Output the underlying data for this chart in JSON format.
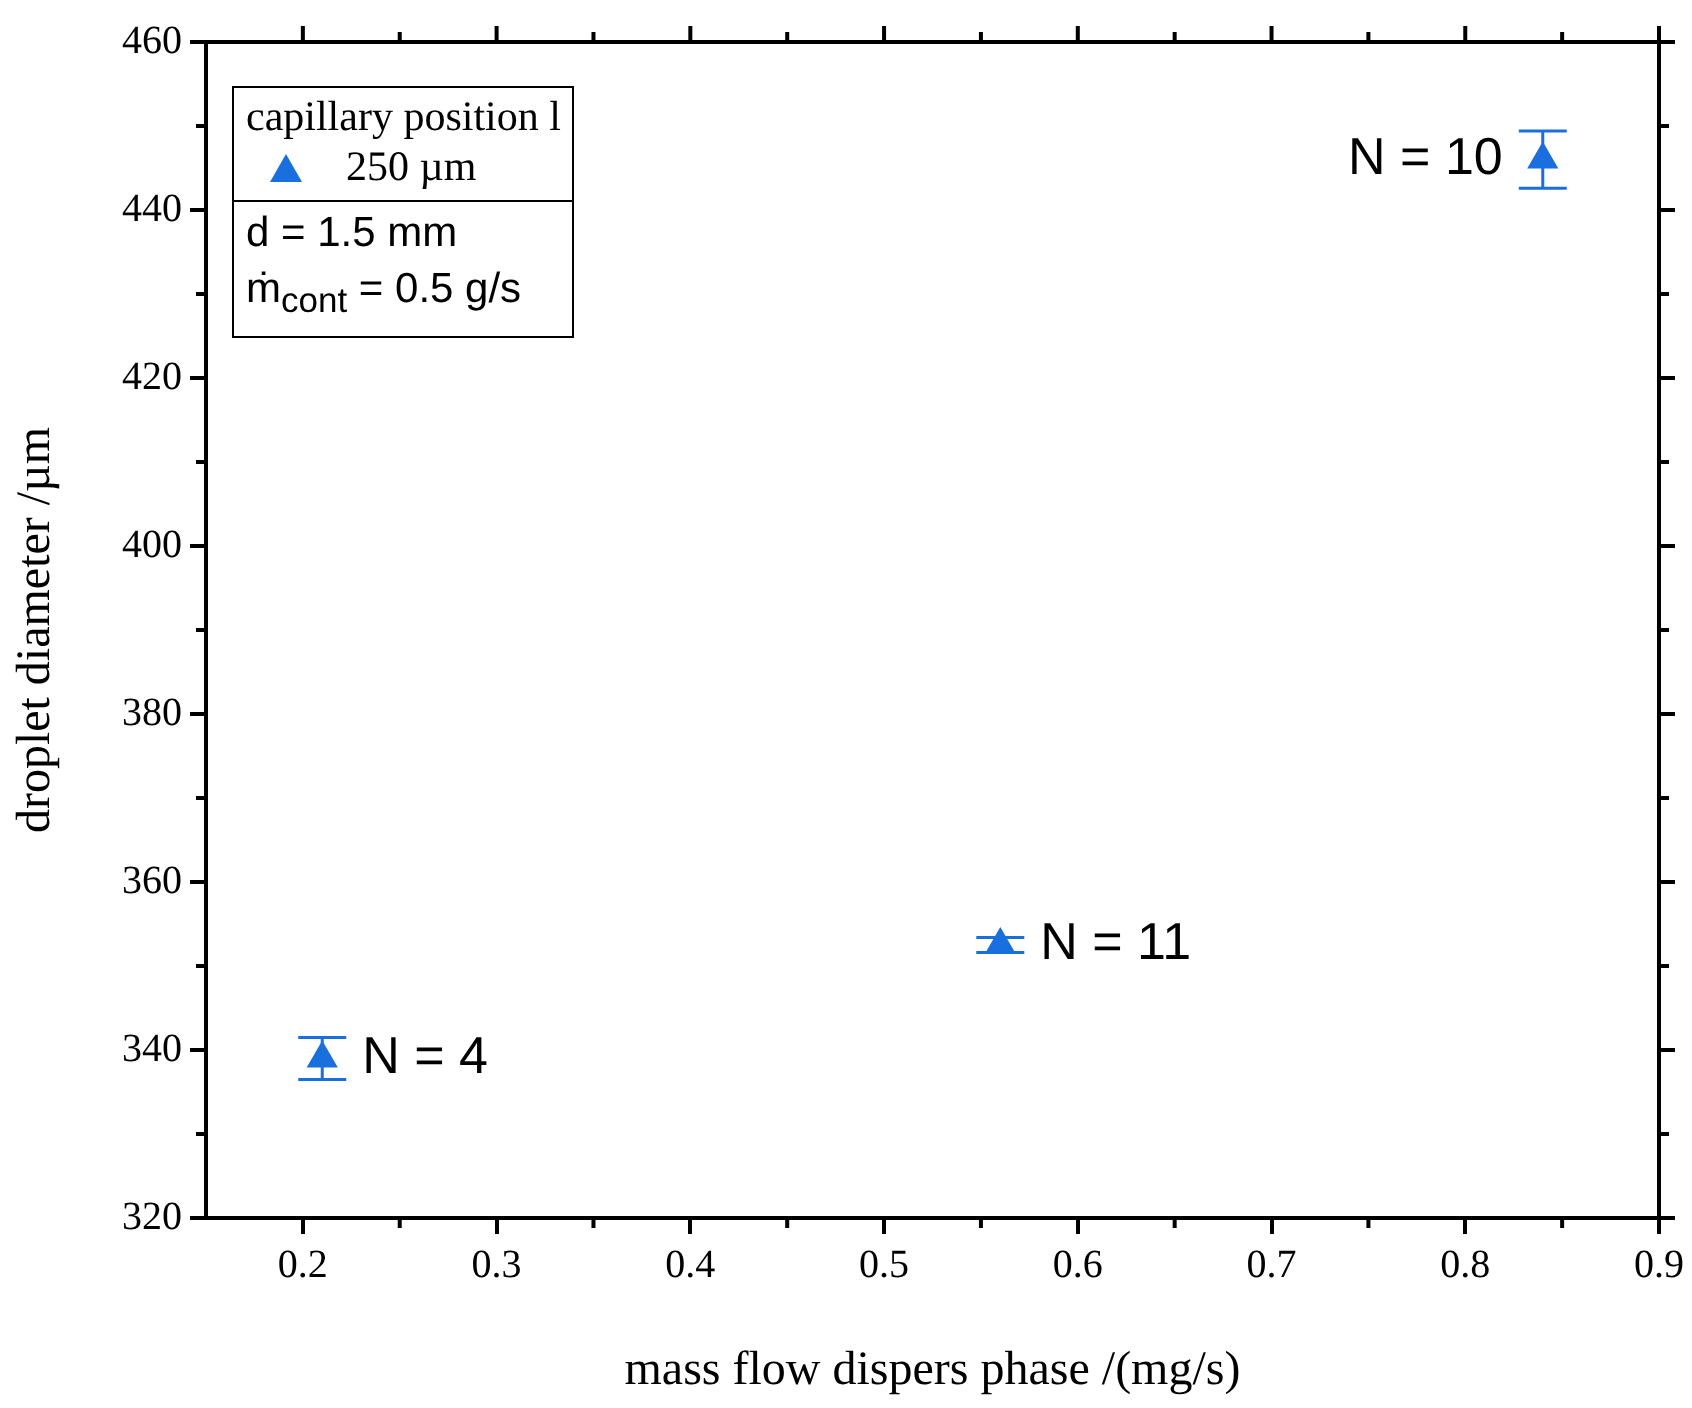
{
  "chart_data": {
    "type": "scatter",
    "xlabel": "mass flow dispers phase /(mg/s)",
    "ylabel": "droplet diameter /µm",
    "legend_title": "capillary position l",
    "legend": "top left",
    "marker": "triangle",
    "grid": false,
    "x": [
      0.21,
      0.56,
      0.84
    ],
    "series": [
      {
        "name": "250 µm",
        "color": "#1a6fdf",
        "values": [
          339,
          352.5,
          446
        ],
        "errors": [
          2.5,
          0.9,
          3.4
        ]
      }
    ],
    "xlim": [
      0.15,
      0.9
    ],
    "xticks": [
      0.2,
      0.3,
      0.4,
      0.5,
      0.6,
      0.7,
      0.8,
      0.9
    ],
    "ylim": [
      320,
      460
    ],
    "yticks": [
      320,
      340,
      360,
      380,
      400,
      420,
      440,
      460
    ],
    "annotations": [
      "d = 1.5 mm",
      "ṁ$_{cont}$ = 0.5 g/s",
      {
        "text": "N = 4",
        "x": 0.21,
        "y": 339
      },
      {
        "text": "N = 11",
        "x": 0.56,
        "y": 352.5
      },
      {
        "text": "N = 10",
        "x": 0.84,
        "y": 446
      }
    ]
  }
}
